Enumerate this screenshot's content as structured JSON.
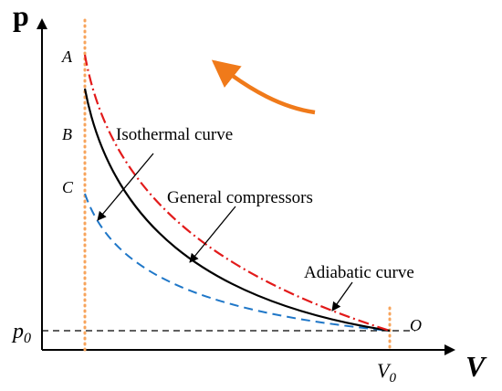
{
  "axes": {
    "y_label": "p",
    "x_label": "V"
  },
  "points": {
    "a_label": "A",
    "b_label": "B",
    "c_label": "C",
    "o_label": "O",
    "p0_label": "p",
    "p0_sub": "0",
    "v0_label": "V",
    "v0_sub": "0"
  },
  "curves": {
    "isothermal_label": "Isothermal curve",
    "general_label": "General compressors",
    "adiabatic_label": "Adiabatic curve"
  },
  "colors": {
    "axis": "#000000",
    "isothermal": "#1f77c8",
    "general": "#000000",
    "adiabatic": "#e21a1a",
    "guide": "#f7a45c",
    "arrow": "#f07a1a",
    "baseline": "#000000"
  },
  "icons": {
    "direction_arrow": "curved-arrow-icon"
  }
}
